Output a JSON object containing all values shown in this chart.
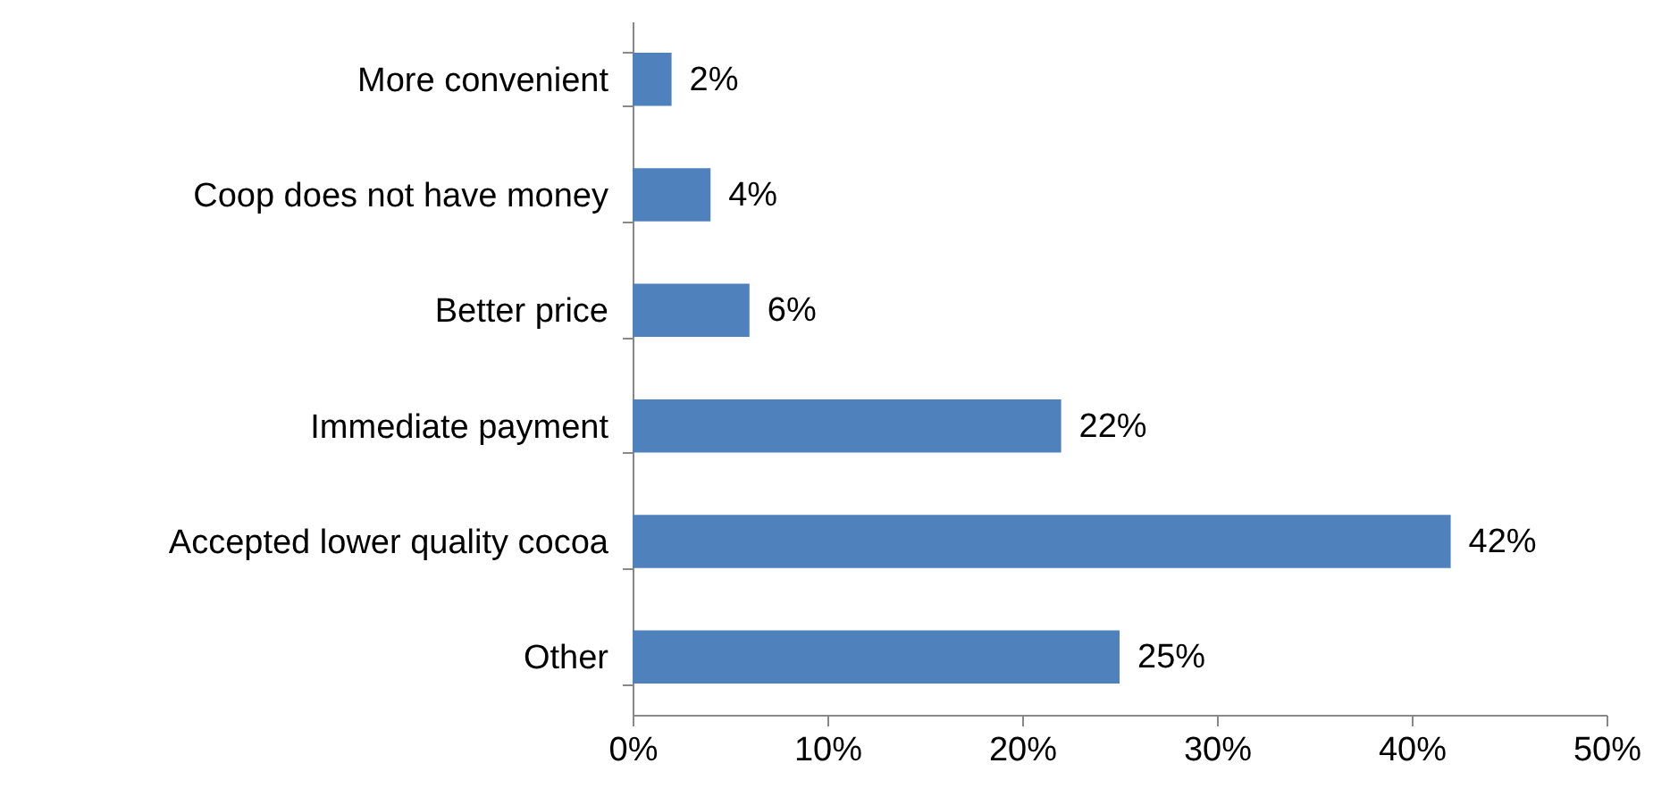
{
  "chart_data": {
    "type": "bar",
    "orientation": "horizontal",
    "categories": [
      "More convenient",
      "Coop does not have money",
      "Better price",
      "Immediate payment",
      "Accepted lower quality cocoa",
      "Other"
    ],
    "values": [
      2,
      4,
      6,
      22,
      42,
      25
    ],
    "value_labels": [
      "2%",
      "4%",
      "6%",
      "22%",
      "42%",
      "25%"
    ],
    "color": "#4f81bd",
    "xlim": [
      0,
      50
    ],
    "xticks": [
      {
        "value": 0,
        "label": "0%"
      },
      {
        "value": 10,
        "label": "10%"
      },
      {
        "value": 20,
        "label": "20%"
      },
      {
        "value": 30,
        "label": "30%"
      },
      {
        "value": 40,
        "label": "40%"
      },
      {
        "value": 50,
        "label": "50%"
      }
    ],
    "grid": false
  }
}
